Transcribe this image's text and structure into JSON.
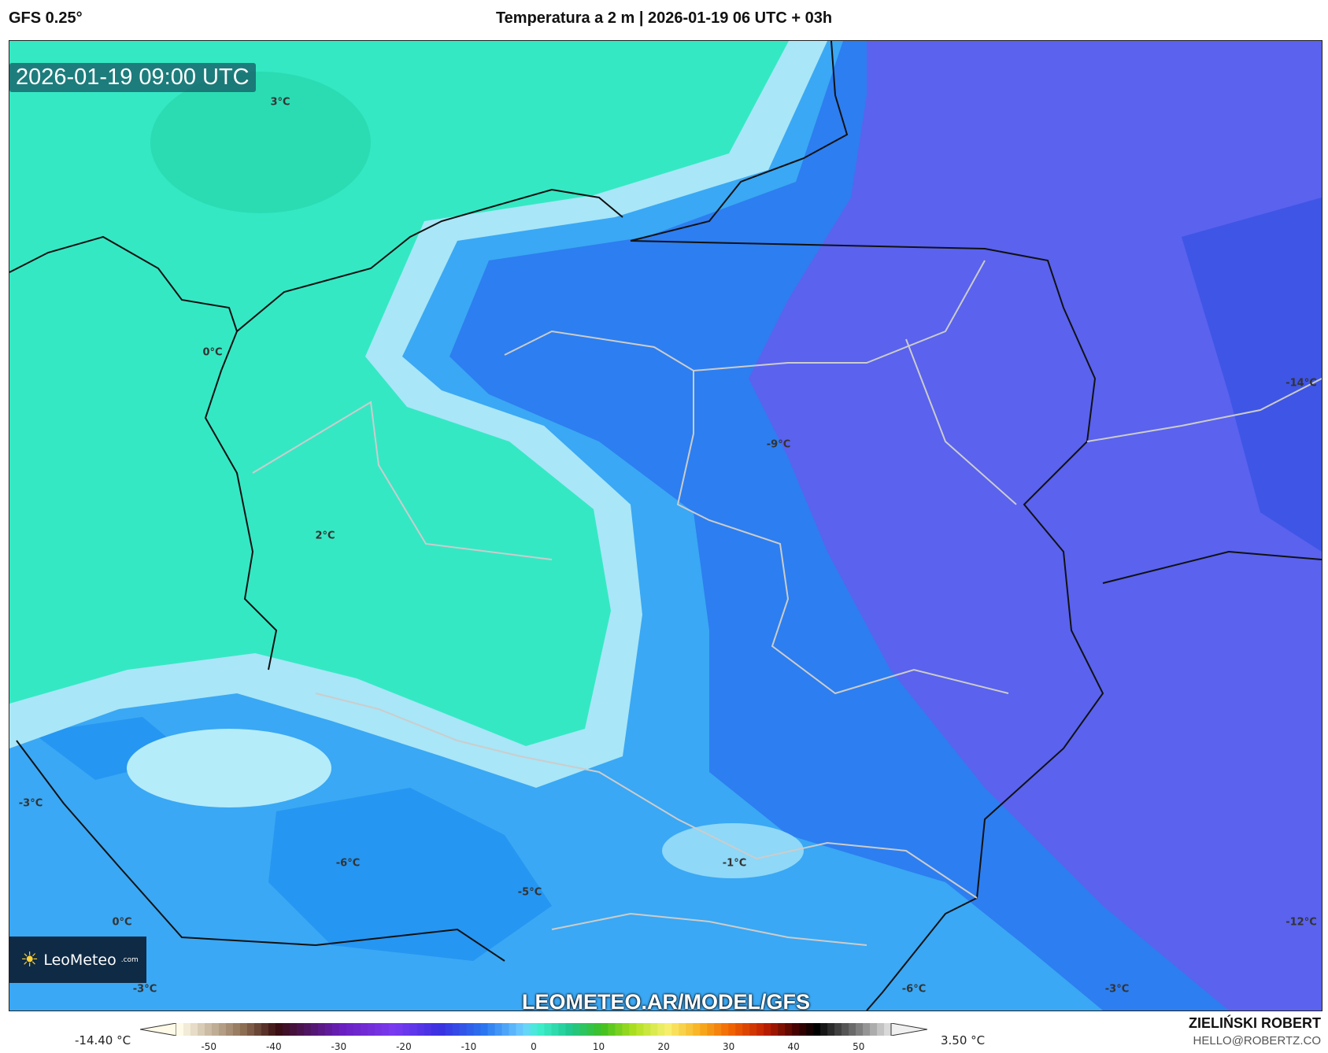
{
  "header": {
    "model": "GFS 0.25°",
    "title": "Temperatura a 2 m | 2026-01-19 06 UTC + 03h"
  },
  "map": {
    "valid_time": "2026-01-19 09:00 UTC",
    "watermark": "LEOMETEO.AR/MODEL/GFS",
    "logo": {
      "name": "LeoMeteo",
      "suffix": ".com"
    },
    "labels": [
      "3°C",
      "0°C",
      "-9°C",
      "-14°C",
      "2°C",
      "-3°C",
      "-6°C",
      "-1°C",
      "-5°C",
      "0°C",
      "-12°C",
      "-3°C",
      "-6°C",
      "-3°C"
    ]
  },
  "colorbar": {
    "min_label": "-14.40 °C",
    "max_label": "3.50 °C",
    "ticks": [
      "-50",
      "-40",
      "-30",
      "-20",
      "-10",
      "0",
      "10",
      "20",
      "30",
      "40",
      "50"
    ]
  },
  "footer": {
    "author": "ZIELIŃSKI ROBERT",
    "email": "HELLO@ROBERTZ.CO"
  },
  "colors": {
    "cold": "#5a62ee",
    "blue": "#2d7ef0",
    "light_blue": "#a9e6f7",
    "green": "#35e8c4"
  }
}
